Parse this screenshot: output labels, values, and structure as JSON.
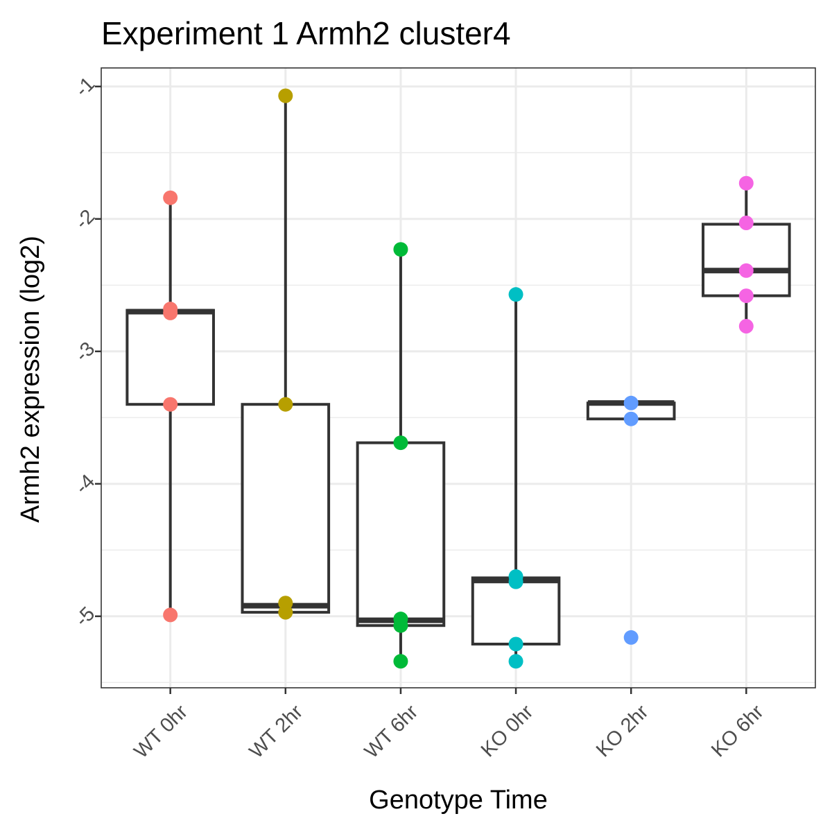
{
  "chart_data": {
    "type": "boxplot",
    "title": "Experiment 1 Armh2 cluster4",
    "xlabel": "Genotype Time",
    "ylabel": "Armh2 expression (log2)",
    "categories": [
      "WT 0hr",
      "WT 2hr",
      "WT 6hr",
      "KO 0hr",
      "KO 2hr",
      "KO 6hr"
    ],
    "ylim": [
      -5.54,
      -0.86
    ],
    "yticks": [
      -5,
      -4,
      -3,
      -2,
      -1
    ],
    "ytick_labels": [
      "-5",
      "-4",
      "-3",
      "-2",
      "-1"
    ],
    "grid": true,
    "legend": "none",
    "colors": [
      "#F8766D",
      "#B79F00",
      "#00BA38",
      "#00BFC4",
      "#619CFF",
      "#F564E3"
    ],
    "boxes": [
      {
        "category": "WT 0hr",
        "whisker_low": -4.99,
        "q1": -3.4,
        "median": -2.7,
        "q3": -2.69,
        "whisker_high": -1.84
      },
      {
        "category": "WT 2hr",
        "whisker_low": -4.97,
        "q1": -4.97,
        "median": -4.92,
        "q3": -3.4,
        "whisker_high": -1.07
      },
      {
        "category": "WT 6hr",
        "whisker_low": -5.34,
        "q1": -5.07,
        "median": -5.03,
        "q3": -3.69,
        "whisker_high": -2.23
      },
      {
        "category": "KO 0hr",
        "whisker_low": -5.34,
        "q1": -5.21,
        "median": -4.73,
        "q3": -4.71,
        "whisker_high": -2.57
      },
      {
        "category": "KO 2hr",
        "whisker_low": -3.51,
        "q1": -3.51,
        "median": -3.39,
        "q3": -3.39,
        "whisker_high": -3.39
      },
      {
        "category": "KO 6hr",
        "whisker_low": -2.81,
        "q1": -2.58,
        "median": -2.39,
        "q3": -2.04,
        "whisker_high": -1.73
      }
    ],
    "points": [
      {
        "category": "WT 0hr",
        "values": [
          -1.84,
          -2.68,
          -2.71,
          -3.4,
          -4.99
        ]
      },
      {
        "category": "WT 2hr",
        "values": [
          -1.07,
          -3.4,
          -4.9,
          -4.97
        ]
      },
      {
        "category": "WT 6hr",
        "values": [
          -2.23,
          -3.69,
          -5.02,
          -5.07,
          -5.34
        ]
      },
      {
        "category": "KO 0hr",
        "values": [
          -2.57,
          -4.7,
          -4.74,
          -5.21,
          -5.34
        ]
      },
      {
        "category": "KO 2hr",
        "values": [
          -3.39,
          -3.51,
          -5.16
        ]
      },
      {
        "category": "KO 6hr",
        "values": [
          -1.73,
          -2.03,
          -2.39,
          -2.58,
          -2.81
        ]
      }
    ],
    "outliers": [
      {
        "category": "WT 0hr",
        "value": -4.99
      },
      {
        "category": "KO 0hr",
        "value": -2.57
      },
      {
        "category": "KO 2hr",
        "value": -5.16
      }
    ]
  }
}
